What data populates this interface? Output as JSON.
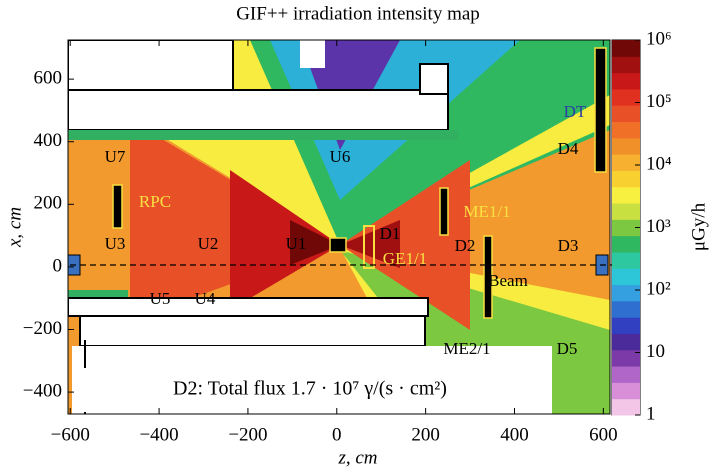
{
  "chart_data": {
    "type": "heatmap",
    "title": "GIF++ irradiation intensity map",
    "xlabel": "z, cm",
    "ylabel": "x, cm",
    "colorbar_label": "μGy/h",
    "xlim": [
      -605,
      615
    ],
    "ylim": [
      -470,
      725
    ],
    "xticks": [
      {
        "value": -600,
        "label": "−600"
      },
      {
        "value": -400,
        "label": "−400"
      },
      {
        "value": -200,
        "label": "−200"
      },
      0,
      200,
      400,
      600
    ],
    "yticks": [
      {
        "value": -400,
        "label": "−400"
      },
      {
        "value": -200,
        "label": "−200"
      },
      0,
      200,
      400,
      600
    ],
    "colorbar_lim": [
      1,
      1000000
    ],
    "colorbar_log": true,
    "colorbar_ticks": [
      {
        "value": 1,
        "label": "1"
      },
      {
        "value": 10,
        "label": "10"
      },
      {
        "value": 100,
        "label": "10²"
      },
      {
        "value": 1000,
        "label": "10³"
      },
      {
        "value": 10000,
        "label": "10⁴"
      },
      {
        "value": 100000,
        "label": "10⁵"
      },
      {
        "value": 1000000,
        "label": "10⁶"
      }
    ],
    "colorbar_colors": [
      "#f3c6e8",
      "#d88fd8",
      "#b065c8",
      "#7c3aa8",
      "#4b2a9a",
      "#3040c0",
      "#2f6fd0",
      "#34a0e0",
      "#2cc6d8",
      "#2ec8a0",
      "#30b860",
      "#7cc840",
      "#c8e040",
      "#f8f040",
      "#f8d030",
      "#f8b030",
      "#f09028",
      "#f07028",
      "#e85028",
      "#e03020",
      "#c81818",
      "#a01010",
      "#700808"
    ],
    "annotations": [
      {
        "text": "U7",
        "color": "#000000"
      },
      {
        "text": "U6",
        "color": "#000000"
      },
      {
        "text": "RPC",
        "color": "#f8e040"
      },
      {
        "text": "U3",
        "color": "#000000"
      },
      {
        "text": "U2",
        "color": "#000000"
      },
      {
        "text": "U1",
        "color": "#000000"
      },
      {
        "text": "D1",
        "color": "#000000"
      },
      {
        "text": "GE1/1",
        "color": "#f8e040"
      },
      {
        "text": "ME1/1",
        "color": "#f8e040"
      },
      {
        "text": "D2",
        "color": "#000000"
      },
      {
        "text": "D3",
        "color": "#000000"
      },
      {
        "text": "Beam",
        "color": "#000000"
      },
      {
        "text": "U5",
        "color": "#000000"
      },
      {
        "text": "U4",
        "color": "#000000"
      },
      {
        "text": "ME2/1",
        "color": "#000000"
      },
      {
        "text": "D5",
        "color": "#000000"
      },
      {
        "text": "DT",
        "color": "#2a3fa0"
      },
      {
        "text": "D4",
        "color": "#000000"
      },
      {
        "text": "D2: Total flux 1.7 · 10⁷ γ/(s · cm²)",
        "color": "#000000"
      }
    ]
  }
}
